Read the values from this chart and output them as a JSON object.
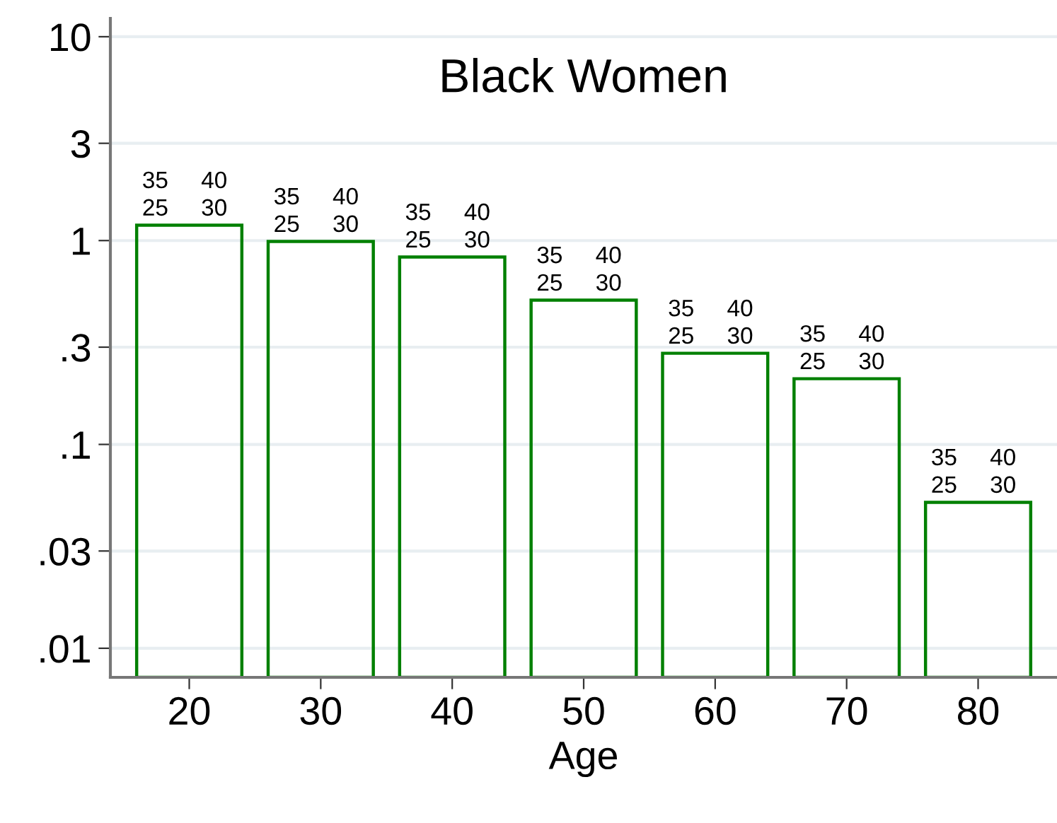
{
  "chart_data": {
    "type": "bar",
    "title": "Black Women",
    "xlabel": "Age",
    "categories": [
      "20",
      "30",
      "40",
      "50",
      "60",
      "70",
      "80"
    ],
    "series": [
      {
        "color": "#008000",
        "values": [
          1.19,
          0.99,
          0.83,
          0.51,
          0.28,
          0.21,
          0.052
        ]
      }
    ],
    "annotations": [
      {
        "text": "25",
        "x": "20",
        "y": 1.19
      },
      {
        "text": "30",
        "x": "20",
        "y": 1.19
      },
      {
        "text": "35",
        "x": "20",
        "y": 1.19
      },
      {
        "text": "40",
        "x": "20",
        "y": 1.19
      },
      {
        "text": "25",
        "x": "30",
        "y": 0.99
      },
      {
        "text": "30",
        "x": "30",
        "y": 0.99
      },
      {
        "text": "35",
        "x": "30",
        "y": 0.99
      },
      {
        "text": "40",
        "x": "30",
        "y": 0.99
      },
      {
        "text": "25",
        "x": "40",
        "y": 0.83
      },
      {
        "text": "30",
        "x": "40",
        "y": 0.83
      },
      {
        "text": "35",
        "x": "40",
        "y": 0.83
      },
      {
        "text": "40",
        "x": "40",
        "y": 0.83
      },
      {
        "text": "25",
        "x": "50",
        "y": 0.51
      },
      {
        "text": "30",
        "x": "50",
        "y": 0.51
      },
      {
        "text": "35",
        "x": "50",
        "y": 0.51
      },
      {
        "text": "40",
        "x": "50",
        "y": 0.51
      },
      {
        "text": "25",
        "x": "60",
        "y": 0.28
      },
      {
        "text": "30",
        "x": "60",
        "y": 0.28
      },
      {
        "text": "35",
        "x": "60",
        "y": 0.28
      },
      {
        "text": "40",
        "x": "60",
        "y": 0.28
      },
      {
        "text": "25",
        "x": "70",
        "y": 0.21
      },
      {
        "text": "30",
        "x": "70",
        "y": 0.21
      },
      {
        "text": "35",
        "x": "70",
        "y": 0.21
      },
      {
        "text": "40",
        "x": "70",
        "y": 0.21
      },
      {
        "text": "25",
        "x": "80",
        "y": 0.052
      },
      {
        "text": "30",
        "x": "80",
        "y": 0.052
      },
      {
        "text": "35",
        "x": "80",
        "y": 0.052
      },
      {
        "text": "40",
        "x": "80",
        "y": 0.052
      }
    ],
    "log": "y",
    "ylim": [
      0.0072,
      12.3
    ],
    "yticks": [
      {
        "value": 0.01,
        "label": ".01"
      },
      {
        "value": 0.03,
        "label": ".03"
      },
      {
        "value": 0.1,
        "label": ".1"
      },
      {
        "value": 0.3,
        "label": ".3"
      },
      1,
      3,
      10
    ],
    "grid": "y"
  }
}
